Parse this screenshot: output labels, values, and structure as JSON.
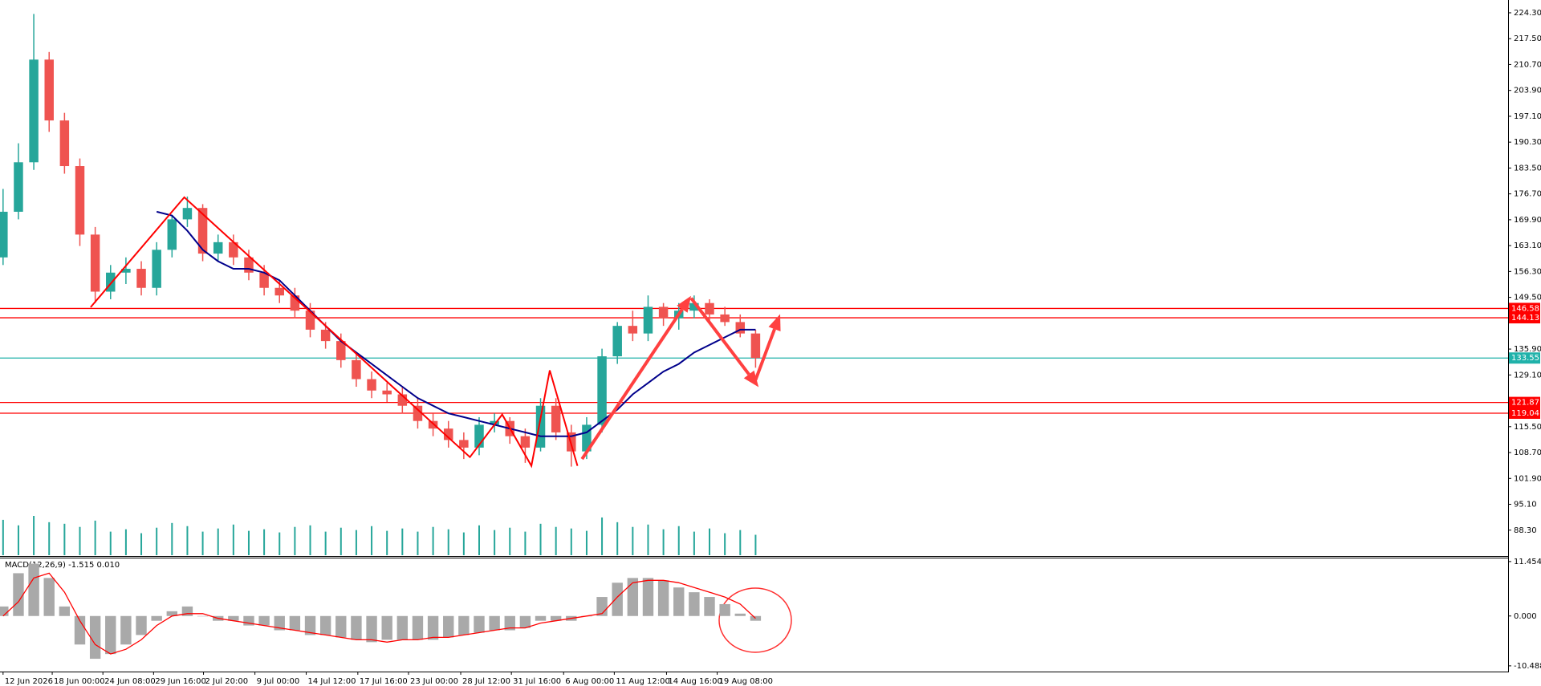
{
  "chart_data": {
    "type": "candlestick",
    "x": [
      0,
      1,
      2,
      3,
      4,
      5,
      6,
      7,
      8,
      9,
      10,
      11,
      12,
      13,
      14,
      15,
      16,
      17,
      18,
      19,
      20,
      21,
      22,
      23,
      24,
      25,
      26,
      27,
      28,
      29,
      30,
      31,
      32,
      33,
      34,
      35,
      36,
      37,
      38,
      39,
      40,
      41,
      42,
      43,
      44,
      45,
      46,
      47,
      48,
      49
    ],
    "open": [
      160,
      172,
      185,
      212,
      196,
      184,
      166,
      151,
      156,
      157,
      152,
      162,
      170,
      173,
      161,
      164,
      160,
      156,
      152,
      150,
      146,
      141,
      138,
      133,
      128,
      125,
      124,
      121,
      117,
      115,
      112,
      110,
      116,
      117,
      113,
      110,
      121,
      114,
      109,
      116,
      134,
      142,
      140,
      147,
      144,
      146,
      148,
      145,
      143,
      140
    ],
    "high": [
      178,
      190,
      224,
      214,
      198,
      186,
      168,
      158,
      160,
      159,
      164,
      171,
      176,
      174,
      166,
      166,
      162,
      158,
      154,
      152,
      148,
      143,
      140,
      135,
      130,
      127,
      126,
      123,
      119,
      117,
      114,
      118,
      119,
      118,
      115,
      123,
      123,
      116,
      118,
      136,
      143,
      146,
      150,
      148,
      148,
      150,
      149,
      147,
      145,
      141
    ],
    "low": [
      158,
      170,
      183,
      193,
      182,
      163,
      148,
      149,
      153,
      150,
      150,
      160,
      168,
      159,
      159,
      158,
      154,
      150,
      148,
      144,
      139,
      136,
      131,
      126,
      123,
      122,
      119,
      115,
      113,
      110,
      107,
      108,
      114,
      111,
      106,
      109,
      112,
      105,
      107,
      114,
      132,
      138,
      138,
      142,
      141,
      144,
      143,
      142,
      139,
      131
    ],
    "close": [
      172,
      185,
      212,
      196,
      184,
      166,
      151,
      156,
      157,
      152,
      162,
      170,
      173,
      161,
      164,
      160,
      156,
      152,
      150,
      146,
      141,
      138,
      133,
      128,
      125,
      124,
      121,
      117,
      115,
      112,
      110,
      116,
      117,
      113,
      110,
      121,
      114,
      109,
      116,
      134,
      142,
      140,
      147,
      144,
      146,
      148,
      145,
      143,
      140,
      133.55
    ],
    "up_color": "#26a69a",
    "down_color": "#ef5350",
    "xlim": [
      -0.2,
      98
    ],
    "ylim": [
      81.5,
      226.4
    ],
    "yticks": [
      {
        "value": 88.3,
        "label": "88.30"
      },
      {
        "value": 95.1,
        "label": "95.10"
      },
      {
        "value": 101.9,
        "label": "101.90"
      },
      {
        "value": 108.7,
        "label": "108.70"
      },
      {
        "value": 115.5,
        "label": "115.50"
      },
      {
        "value": 129.1,
        "label": "129.10"
      },
      {
        "value": 135.9,
        "label": "135.90"
      },
      {
        "value": 149.5,
        "label": "149.50"
      },
      {
        "value": 156.3,
        "label": "156.30"
      },
      {
        "value": 163.1,
        "label": "163.10"
      },
      {
        "value": 169.9,
        "label": "169.90"
      },
      {
        "value": 176.7,
        "label": "176.70"
      },
      {
        "value": 183.5,
        "label": "183.50"
      },
      {
        "value": 190.3,
        "label": "190.30"
      },
      {
        "value": 197.1,
        "label": "197.10"
      },
      {
        "value": 203.9,
        "label": "203.90"
      },
      {
        "value": 210.7,
        "label": "210.70"
      },
      {
        "value": 217.5,
        "label": "217.50"
      },
      {
        "value": 224.3,
        "label": "224.30"
      }
    ],
    "xticks": [
      {
        "value": 0,
        "label": "12 Jun 2026"
      },
      {
        "value": 3.2,
        "label": "18 Jun 00:00"
      },
      {
        "value": 6.5,
        "label": "24 Jun 08:00"
      },
      {
        "value": 9.8,
        "label": "29 Jun 16:00"
      },
      {
        "value": 13.05,
        "label": "2 Jul 20:00"
      },
      {
        "value": 16.4,
        "label": "9 Jul 00:00"
      },
      {
        "value": 19.74,
        "label": "14 Jul 12:00"
      },
      {
        "value": 23.1,
        "label": "17 Jul 16:00"
      },
      {
        "value": 26.4,
        "label": "23 Jul 00:00"
      },
      {
        "value": 29.8,
        "label": "28 Jul 12:00"
      },
      {
        "value": 33.1,
        "label": "31 Jul 16:00"
      },
      {
        "value": 36.5,
        "label": "6 Aug 00:00"
      },
      {
        "value": 39.8,
        "label": "11 Aug 12:00"
      },
      {
        "value": 43.2,
        "label": "14 Aug 16:00"
      },
      {
        "value": 46.5,
        "label": "19 Aug 08:00"
      }
    ],
    "levels": [
      {
        "value": 146.58,
        "color": "#ff0000"
      },
      {
        "value": 144.13,
        "color": "#ff0000"
      },
      {
        "value": 133.55,
        "color": "#20b2aa"
      },
      {
        "value": 121.87,
        "color": "#ff0000"
      },
      {
        "value": 119.04,
        "color": "#ff0000"
      }
    ],
    "moving_average": {
      "color": "#00008b",
      "values": [
        null,
        null,
        null,
        null,
        null,
        null,
        null,
        null,
        null,
        null,
        172,
        171,
        167,
        162,
        159,
        157,
        157,
        156,
        154,
        150,
        146,
        142,
        138,
        135,
        132,
        129,
        126,
        123,
        121,
        119,
        118,
        117,
        116,
        115,
        114,
        113,
        113,
        113,
        114,
        117,
        120,
        124,
        127,
        130,
        132,
        135,
        137,
        139,
        141,
        141
      ]
    },
    "volume": {
      "color": "#26a69a",
      "lim": [
        0,
        100
      ],
      "values": [
        45,
        38,
        50,
        42,
        40,
        36,
        44,
        30,
        33,
        28,
        35,
        41,
        37,
        30,
        34,
        39,
        31,
        33,
        29,
        36,
        38,
        30,
        35,
        32,
        37,
        31,
        34,
        30,
        36,
        33,
        29,
        38,
        32,
        35,
        30,
        40,
        36,
        34,
        31,
        48,
        42,
        36,
        39,
        33,
        37,
        30,
        34,
        28,
        32,
        26
      ]
    },
    "zigzag": {
      "color": "#ff0000",
      "x": [
        5.7,
        11.8,
        30.4,
        32.5,
        34.4,
        35.6,
        37.4
      ],
      "y": [
        146.9,
        175.8,
        107.5,
        118.7,
        105.2,
        130.3,
        105.2
      ]
    },
    "arrows": [
      {
        "color": "#ff4040",
        "x": [
          37.7,
          44.8
        ],
        "y": [
          107,
          149.9
        ]
      },
      {
        "color": "#ff4040",
        "x": [
          44.8,
          49.2
        ],
        "y": [
          149.3,
          125.9
        ]
      },
      {
        "color": "#ff4040",
        "x": [
          49,
          50.6
        ],
        "y": [
          127.8,
          145.1
        ]
      }
    ],
    "macd": {
      "label": "MACD(12,26,9) -1.515 0.010",
      "ylim": [
        -11.52,
        12.28
      ],
      "yticks": [
        11.454,
        {
          "value": 0,
          "label": "0.000"
        },
        -10.488
      ],
      "histogram": {
        "color": "#a9a9a9",
        "values": [
          2,
          9,
          11,
          8,
          2,
          -6,
          -9,
          -8,
          -6,
          -4,
          -1,
          1,
          2,
          0,
          -1,
          -1,
          -2,
          -2,
          -3,
          -3,
          -4,
          -4,
          -4.5,
          -5,
          -5.5,
          -5,
          -5,
          -5,
          -5,
          -4.5,
          -4,
          -3.5,
          -3,
          -3,
          -2.5,
          -1,
          -1,
          -1,
          0,
          4,
          7,
          8,
          8,
          7.5,
          6,
          5,
          4,
          2.5,
          0.5,
          -1
        ]
      },
      "signal": {
        "color": "#ff0000",
        "values": [
          0,
          3,
          8,
          9,
          5,
          -1,
          -6,
          -8,
          -7,
          -5,
          -2,
          0,
          0.5,
          0.5,
          -0.5,
          -1,
          -1.5,
          -2,
          -2.5,
          -3,
          -3.5,
          -4,
          -4.5,
          -5,
          -5,
          -5.5,
          -5,
          -5,
          -4.5,
          -4.5,
          -4,
          -3.5,
          -3,
          -2.5,
          -2.5,
          -1.5,
          -1,
          -0.5,
          0,
          0.5,
          4,
          7,
          7.5,
          7.5,
          7,
          6,
          5,
          4,
          2.5,
          -0.5
        ]
      }
    }
  }
}
